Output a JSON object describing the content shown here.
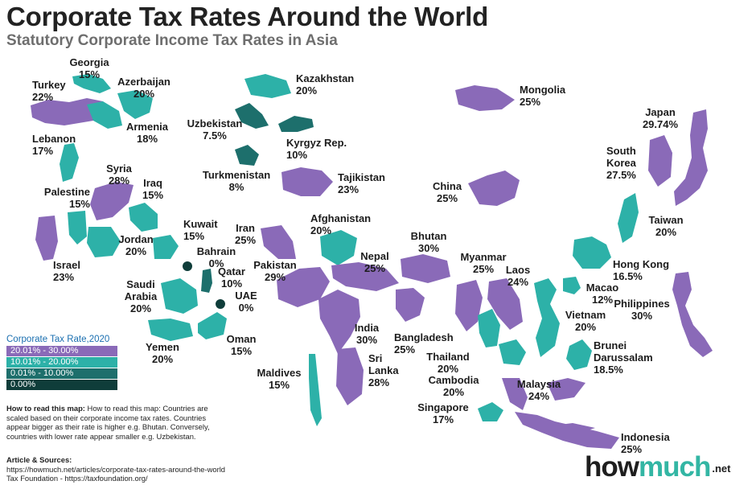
{
  "header": {
    "title": "Corporate Tax Rates Around the World",
    "subtitle": "Statutory Corporate Income Tax Rates in Asia"
  },
  "colors": {
    "band_20_30": "#8a6ab8",
    "band_10_20": "#2db1a8",
    "band_0_10": "#1d6f6c",
    "band_0": "#0f3d3a"
  },
  "countries": [
    {
      "name": "Georgia",
      "rate": "15%"
    },
    {
      "name": "Turkey",
      "rate": "22%"
    },
    {
      "name": "Azerbaijan",
      "rate": "20%"
    },
    {
      "name": "Armenia",
      "rate": "18%"
    },
    {
      "name": "Lebanon",
      "rate": "17%"
    },
    {
      "name": "Syria",
      "rate": "28%"
    },
    {
      "name": "Iraq",
      "rate": "15%"
    },
    {
      "name": "Palestine",
      "rate": "15%"
    },
    {
      "name": "Kuwait",
      "rate": "15%"
    },
    {
      "name": "Jordan",
      "rate": "20%"
    },
    {
      "name": "Bahrain",
      "rate": "0%"
    },
    {
      "name": "Qatar",
      "rate": "10%"
    },
    {
      "name": "Israel",
      "rate": "23%"
    },
    {
      "name": "Saudi Arabia",
      "line1": "Saudi",
      "line2": "Arabia",
      "rate": "20%"
    },
    {
      "name": "UAE",
      "rate": "0%"
    },
    {
      "name": "Yemen",
      "rate": "20%"
    },
    {
      "name": "Oman",
      "rate": "15%"
    },
    {
      "name": "Kazakhstan",
      "rate": "20%"
    },
    {
      "name": "Uzbekistan",
      "rate": "7.5%"
    },
    {
      "name": "Kyrgyz Rep.",
      "rate": "10%"
    },
    {
      "name": "Turkmenistan",
      "rate": "8%"
    },
    {
      "name": "Tajikistan",
      "rate": "23%"
    },
    {
      "name": "Iran",
      "rate": "25%"
    },
    {
      "name": "Afghanistan",
      "rate": "20%"
    },
    {
      "name": "Pakistan",
      "rate": "29%"
    },
    {
      "name": "Nepal",
      "rate": "25%"
    },
    {
      "name": "India",
      "rate": "30%"
    },
    {
      "name": "Maldives",
      "rate": "15%"
    },
    {
      "name": "Sri Lanka",
      "line1": "Sri",
      "line2": "Lanka",
      "rate": "28%"
    },
    {
      "name": "Bhutan",
      "rate": "30%"
    },
    {
      "name": "Bangladesh",
      "rate": "25%"
    },
    {
      "name": "Mongolia",
      "rate": "25%"
    },
    {
      "name": "China",
      "rate": "25%"
    },
    {
      "name": "Myanmar",
      "rate": "25%"
    },
    {
      "name": "Laos",
      "rate": "24%"
    },
    {
      "name": "Thailand",
      "rate": "20%"
    },
    {
      "name": "Cambodia",
      "rate": "20%"
    },
    {
      "name": "Vietnam",
      "rate": "20%"
    },
    {
      "name": "Malaysia",
      "rate": "24%"
    },
    {
      "name": "Singapore",
      "rate": "17%"
    },
    {
      "name": "Brunei Darussalam",
      "line1": "Brunei",
      "line2": "Darussalam",
      "rate": "18.5%"
    },
    {
      "name": "Indonesia",
      "rate": "25%"
    },
    {
      "name": "Philippines",
      "rate": "30%"
    },
    {
      "name": "Macao",
      "rate": "12%"
    },
    {
      "name": "Hong Kong",
      "rate": "16.5%"
    },
    {
      "name": "Taiwan",
      "rate": "20%"
    },
    {
      "name": "South Korea",
      "line1": "South",
      "line2": "Korea",
      "rate": "27.5%"
    },
    {
      "name": "Japan",
      "rate": "29.74%"
    }
  ],
  "legend": {
    "title": "Corporate Tax Rate,2020",
    "items": [
      {
        "label": "20.01% - 30.00%"
      },
      {
        "label": "10.01% - 20.00%"
      },
      {
        "label": "0.01% - 10.00%"
      },
      {
        "label": "0.00%"
      }
    ]
  },
  "howto": {
    "heading": "How to read this map:",
    "text": "How to read this map: Countries are scaled based on their corporate income tax rates. Countries appear bigger as their rate is higher e.g. Bhutan. Conversely, countries with lower rate appear smaller e.g. Uzbekistan."
  },
  "sources": {
    "heading": "Article & Sources:",
    "line1": "https://howmuch.net/articles/corporate-tax-rates-around-the-world",
    "line2": "Tax Foundation - https://taxfoundation.org/"
  },
  "logo": {
    "part1": "how",
    "part2": "much",
    "part3": ".net"
  }
}
